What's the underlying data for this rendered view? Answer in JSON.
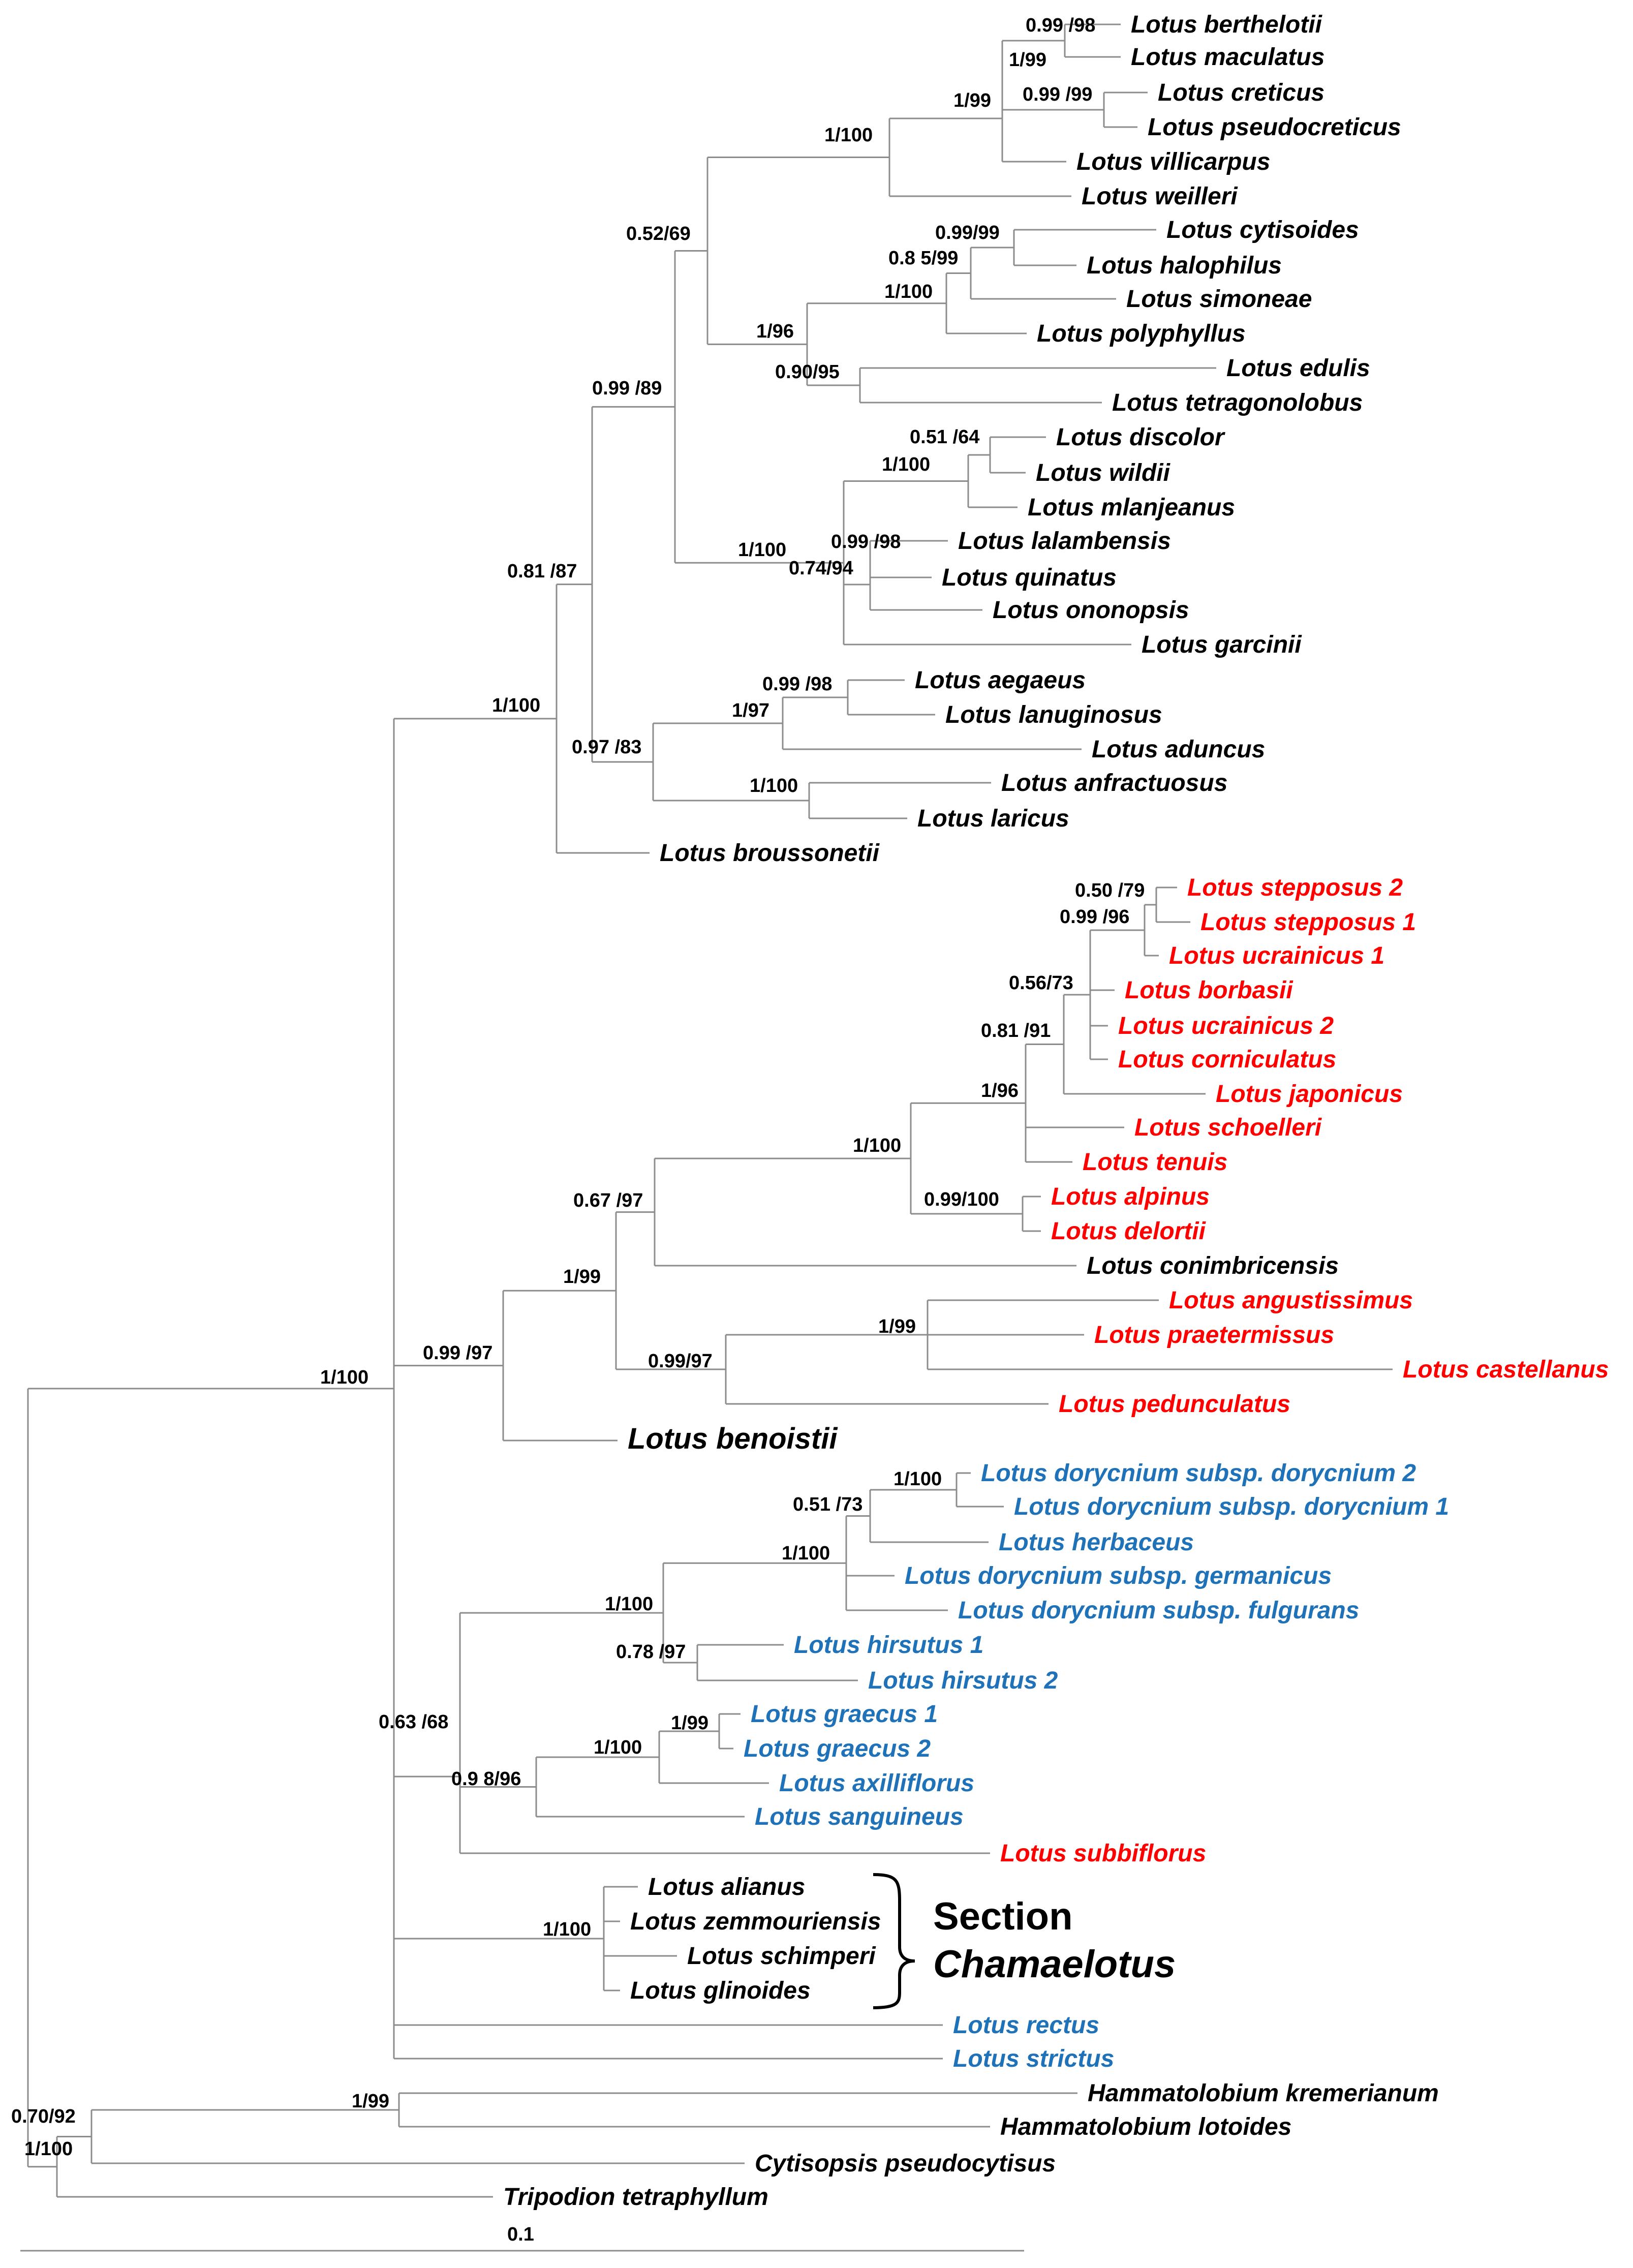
{
  "colors": {
    "black": "#000000",
    "red": "#ff0000",
    "blue": "#1f72b8",
    "branch": "#8c8c8c"
  },
  "taxa": [
    {
      "id": "t1",
      "text": "Lotus berthelotii",
      "color": "black"
    },
    {
      "id": "t2",
      "text": "Lotus maculatus",
      "color": "black"
    },
    {
      "id": "t3",
      "text": "Lotus creticus",
      "color": "black"
    },
    {
      "id": "t4",
      "text": "Lotus pseudocreticus",
      "color": "black"
    },
    {
      "id": "t5",
      "text": "Lotus villicarpus",
      "color": "black"
    },
    {
      "id": "t6",
      "text": "Lotus weilleri",
      "color": "black"
    },
    {
      "id": "t7",
      "text": "Lotus cytisoides",
      "color": "black"
    },
    {
      "id": "t8",
      "text": "Lotus halophilus",
      "color": "black"
    },
    {
      "id": "t9",
      "text": "Lotus simoneae",
      "color": "black"
    },
    {
      "id": "t10",
      "text": "Lotus polyphyllus",
      "color": "black"
    },
    {
      "id": "t11",
      "text": "Lotus edulis",
      "color": "black"
    },
    {
      "id": "t12",
      "text": "Lotus tetragonolobus",
      "color": "black"
    },
    {
      "id": "t13",
      "text": "Lotus discolor",
      "color": "black"
    },
    {
      "id": "t14",
      "text": "Lotus wildii",
      "color": "black"
    },
    {
      "id": "t15",
      "text": "Lotus mlanjeanus",
      "color": "black"
    },
    {
      "id": "t16",
      "text": "Lotus lalambensis",
      "color": "black"
    },
    {
      "id": "t17",
      "text": "Lotus quinatus",
      "color": "black"
    },
    {
      "id": "t18",
      "text": "Lotus ononopsis",
      "color": "black"
    },
    {
      "id": "t19",
      "text": "Lotus garcinii",
      "color": "black"
    },
    {
      "id": "t20",
      "text": "Lotus aegaeus",
      "color": "black"
    },
    {
      "id": "t21",
      "text": "Lotus lanuginosus",
      "color": "black"
    },
    {
      "id": "t22",
      "text": "Lotus aduncus",
      "color": "black"
    },
    {
      "id": "t23",
      "text": "Lotus anfractuosus",
      "color": "black"
    },
    {
      "id": "t24",
      "text": "Lotus laricus",
      "color": "black"
    },
    {
      "id": "t25",
      "text": "Lotus broussonetii",
      "color": "black"
    },
    {
      "id": "t26",
      "text": "Lotus stepposus 2",
      "color": "red"
    },
    {
      "id": "t27",
      "text": "Lotus stepposus 1",
      "color": "red"
    },
    {
      "id": "t28",
      "text": "Lotus ucrainicus 1",
      "color": "red"
    },
    {
      "id": "t29",
      "text": "Lotus borbasii",
      "color": "red"
    },
    {
      "id": "t30",
      "text": "Lotus ucrainicus 2",
      "color": "red"
    },
    {
      "id": "t31",
      "text": "Lotus corniculatus",
      "color": "red"
    },
    {
      "id": "t32",
      "text": "Lotus japonicus",
      "color": "red"
    },
    {
      "id": "t33",
      "text": "Lotus schoelleri",
      "color": "red"
    },
    {
      "id": "t34",
      "text": "Lotus tenuis",
      "color": "red"
    },
    {
      "id": "t35",
      "text": "Lotus alpinus",
      "color": "red"
    },
    {
      "id": "t36",
      "text": "Lotus delortii",
      "color": "red"
    },
    {
      "id": "t37",
      "text": "Lotus conimbricensis",
      "color": "black"
    },
    {
      "id": "t38",
      "text": "Lotus angustissimus",
      "color": "red"
    },
    {
      "id": "t39",
      "text": "Lotus praetermissus",
      "color": "red"
    },
    {
      "id": "t40",
      "text": "Lotus castellanus",
      "color": "red"
    },
    {
      "id": "t41",
      "text": "Lotus pedunculatus",
      "color": "red"
    },
    {
      "id": "t42",
      "text": "Lotus benoistii",
      "color": "black",
      "big": true
    },
    {
      "id": "t43",
      "text": "Lotus dorycnium subsp. dorycnium 2",
      "color": "blue"
    },
    {
      "id": "t44",
      "text": "Lotus dorycnium subsp. dorycnium 1",
      "color": "blue"
    },
    {
      "id": "t45",
      "text": "Lotus herbaceus",
      "color": "blue"
    },
    {
      "id": "t46",
      "text": "Lotus dorycnium subsp. germanicus",
      "color": "blue"
    },
    {
      "id": "t47",
      "text": "Lotus dorycnium subsp. fulgurans",
      "color": "blue"
    },
    {
      "id": "t48",
      "text": "Lotus hirsutus 1",
      "color": "blue"
    },
    {
      "id": "t49",
      "text": "Lotus hirsutus 2",
      "color": "blue"
    },
    {
      "id": "t50",
      "text": "Lotus graecus 1",
      "color": "blue"
    },
    {
      "id": "t51",
      "text": "Lotus graecus 2",
      "color": "blue"
    },
    {
      "id": "t52",
      "text": "Lotus axilliflorus",
      "color": "blue"
    },
    {
      "id": "t53",
      "text": "Lotus sanguineus",
      "color": "blue"
    },
    {
      "id": "t54",
      "text": "Lotus subbiflorus",
      "color": "red"
    },
    {
      "id": "t55",
      "text": "Lotus alianus",
      "color": "black"
    },
    {
      "id": "t56",
      "text": "Lotus zemmouriensis",
      "color": "black"
    },
    {
      "id": "t57",
      "text": "Lotus schimperi",
      "color": "black"
    },
    {
      "id": "t58",
      "text": "Lotus glinoides",
      "color": "black"
    },
    {
      "id": "t59",
      "text": "Lotus rectus",
      "color": "blue"
    },
    {
      "id": "t60",
      "text": "Lotus strictus",
      "color": "blue"
    },
    {
      "id": "t61",
      "text": "Hammatolobium kremerianum",
      "color": "black"
    },
    {
      "id": "t62",
      "text": "Hammatolobium lotoides",
      "color": "black"
    },
    {
      "id": "t63",
      "text": "Cytisopsis pseudocytisus",
      "color": "black"
    },
    {
      "id": "t64",
      "text": "Tripodion tetraphyllum",
      "color": "black"
    }
  ],
  "support_labels": [
    {
      "id": "s1",
      "text": "0.99 /98"
    },
    {
      "id": "s2",
      "text": "1/99"
    },
    {
      "id": "s3",
      "text": "0.99 /99"
    },
    {
      "id": "s4",
      "text": "1/99"
    },
    {
      "id": "s5",
      "text": "1/100"
    },
    {
      "id": "s6",
      "text": "0.99/99"
    },
    {
      "id": "s7",
      "text": "0.8 5/99"
    },
    {
      "id": "s8",
      "text": "1/100"
    },
    {
      "id": "s9",
      "text": "0.52/69"
    },
    {
      "id": "s10",
      "text": "1/96"
    },
    {
      "id": "s11",
      "text": "0.90/95"
    },
    {
      "id": "s12",
      "text": "0.99 /89"
    },
    {
      "id": "s13",
      "text": "0.51 /64"
    },
    {
      "id": "s14",
      "text": "1/100"
    },
    {
      "id": "s15",
      "text": "0.99 /98"
    },
    {
      "id": "s16",
      "text": "1/100"
    },
    {
      "id": "s17",
      "text": "0.74/94"
    },
    {
      "id": "s18",
      "text": "0.81 /87"
    },
    {
      "id": "s19",
      "text": "0.99 /98"
    },
    {
      "id": "s20",
      "text": "1/97"
    },
    {
      "id": "s21",
      "text": "1/100"
    },
    {
      "id": "s22",
      "text": "0.97 /83"
    },
    {
      "id": "s23",
      "text": "1/100"
    },
    {
      "id": "s24",
      "text": "0.50 /79"
    },
    {
      "id": "s25",
      "text": "0.99 /96"
    },
    {
      "id": "s26",
      "text": "0.56/73"
    },
    {
      "id": "s27",
      "text": "0.81 /91"
    },
    {
      "id": "s28",
      "text": "1/96"
    },
    {
      "id": "s29",
      "text": "1/100"
    },
    {
      "id": "s30",
      "text": "0.99/100"
    },
    {
      "id": "s31",
      "text": "0.67 /97"
    },
    {
      "id": "s32",
      "text": "1/99"
    },
    {
      "id": "s33",
      "text": "1/99"
    },
    {
      "id": "s34",
      "text": "0.99/97"
    },
    {
      "id": "s35",
      "text": "0.99 /97"
    },
    {
      "id": "s36",
      "text": "1/100"
    },
    {
      "id": "s37",
      "text": "1/100"
    },
    {
      "id": "s38",
      "text": "0.51 /73"
    },
    {
      "id": "s39",
      "text": "1/100"
    },
    {
      "id": "s40",
      "text": "1/100"
    },
    {
      "id": "s41",
      "text": "0.78 /97"
    },
    {
      "id": "s42",
      "text": "1/99"
    },
    {
      "id": "s43",
      "text": "1/100"
    },
    {
      "id": "s44",
      "text": "0.9 8/96"
    },
    {
      "id": "s45",
      "text": "0.63 /68"
    },
    {
      "id": "s46",
      "text": "1/100"
    },
    {
      "id": "s47",
      "text": "1/99"
    },
    {
      "id": "s48",
      "text": "0.70/92"
    },
    {
      "id": "s49",
      "text": "1/100"
    }
  ],
  "section_label": {
    "line1": "Section",
    "line2": "Chamaelotus"
  },
  "scale_bar": {
    "label": "0.1"
  }
}
